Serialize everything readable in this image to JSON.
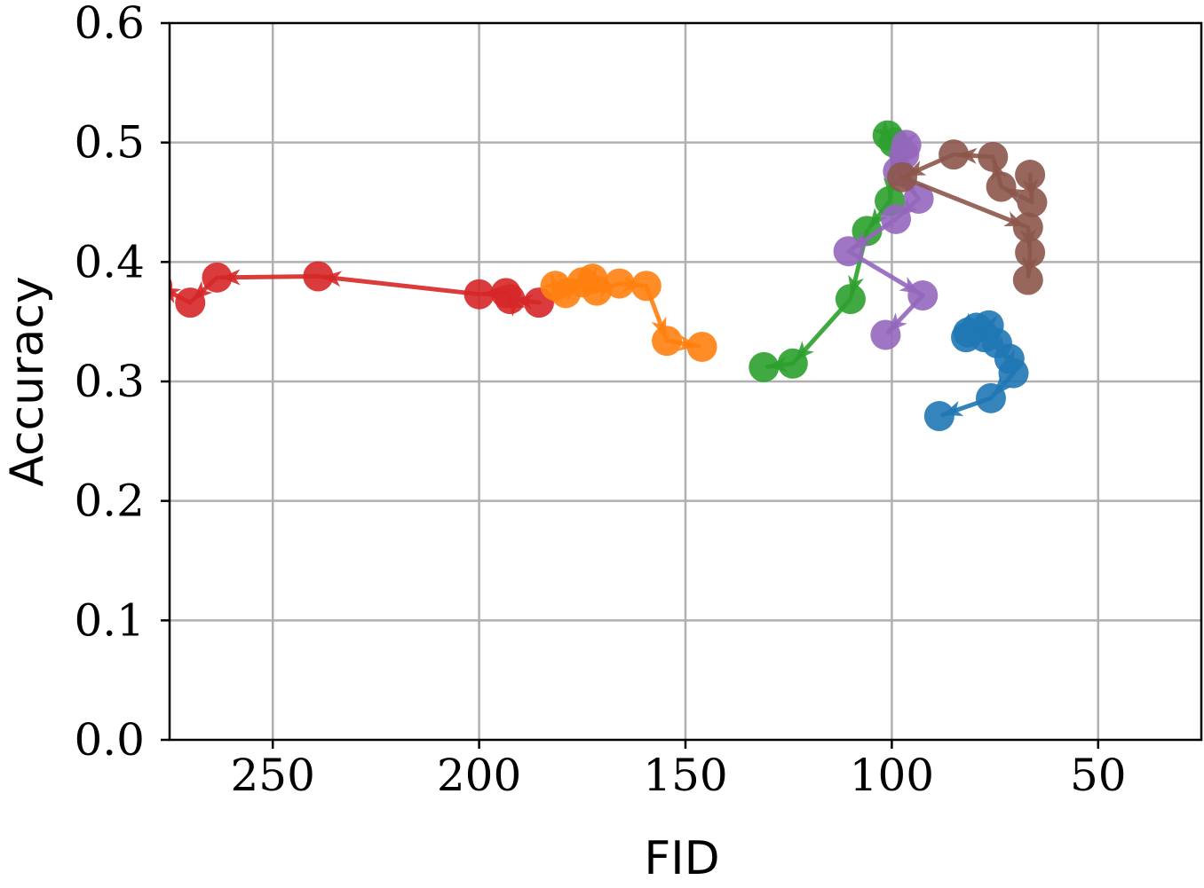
{
  "chart_data": {
    "type": "scatter",
    "xlabel": "FID",
    "ylabel": "Accuracy",
    "xlim": [
      275,
      25
    ],
    "ylim": [
      0,
      0.6
    ],
    "x_inverted": true,
    "grid": true,
    "x_ticks": [
      250,
      200,
      150,
      100,
      50
    ],
    "x_tick_labels": [
      "250",
      "200",
      "150",
      "100",
      "50"
    ],
    "y_ticks": [
      0.0,
      0.1,
      0.2,
      0.3,
      0.4,
      0.5,
      0.6
    ],
    "y_tick_labels": [
      "0.0",
      "0.1",
      "0.2",
      "0.3",
      "0.4",
      "0.5",
      "0.6"
    ],
    "series": [
      {
        "color": "#d62728",
        "points": [
          [
            185.5,
            0.366
          ],
          [
            192.5,
            0.369
          ],
          [
            193.5,
            0.374
          ],
          [
            200.0,
            0.373
          ],
          [
            239.0,
            0.388
          ],
          [
            263.5,
            0.387
          ],
          [
            270.0,
            0.366
          ],
          [
            278.0,
            0.38
          ]
        ]
      },
      {
        "color": "#ff7f0e",
        "points": [
          [
            181.5,
            0.38
          ],
          [
            179.0,
            0.374
          ],
          [
            175.0,
            0.383
          ],
          [
            172.5,
            0.386
          ],
          [
            171.5,
            0.376
          ],
          [
            166.0,
            0.382
          ],
          [
            159.5,
            0.38
          ],
          [
            154.5,
            0.334
          ],
          [
            146.0,
            0.329
          ]
        ]
      },
      {
        "color": "#2ca02c",
        "points": [
          [
            101.0,
            0.506
          ],
          [
            99.5,
            0.5
          ],
          [
            100.5,
            0.451
          ],
          [
            106.0,
            0.426
          ],
          [
            110.0,
            0.369
          ],
          [
            124.0,
            0.315
          ],
          [
            131.0,
            0.312
          ]
        ]
      },
      {
        "color": "#9467bd",
        "points": [
          [
            96.5,
            0.498
          ],
          [
            97.0,
            0.49
          ],
          [
            98.5,
            0.476
          ],
          [
            93.5,
            0.453
          ],
          [
            99.0,
            0.436
          ],
          [
            110.5,
            0.409
          ],
          [
            92.5,
            0.372
          ],
          [
            101.5,
            0.339
          ]
        ]
      },
      {
        "color": "#8c564b",
        "points": [
          [
            66.5,
            0.473
          ],
          [
            66.0,
            0.45
          ],
          [
            73.5,
            0.463
          ],
          [
            75.5,
            0.488
          ],
          [
            85.0,
            0.49
          ],
          [
            97.5,
            0.471
          ],
          [
            67.0,
            0.429
          ],
          [
            66.5,
            0.408
          ],
          [
            67.0,
            0.385
          ]
        ]
      },
      {
        "color": "#1f77b4",
        "points": [
          [
            76.5,
            0.347
          ],
          [
            79.5,
            0.345
          ],
          [
            81.5,
            0.341
          ],
          [
            82.0,
            0.337
          ],
          [
            77.5,
            0.337
          ],
          [
            74.5,
            0.332
          ],
          [
            71.5,
            0.319
          ],
          [
            70.5,
            0.307
          ],
          [
            76.0,
            0.286
          ],
          [
            88.5,
            0.271
          ]
        ]
      }
    ]
  }
}
